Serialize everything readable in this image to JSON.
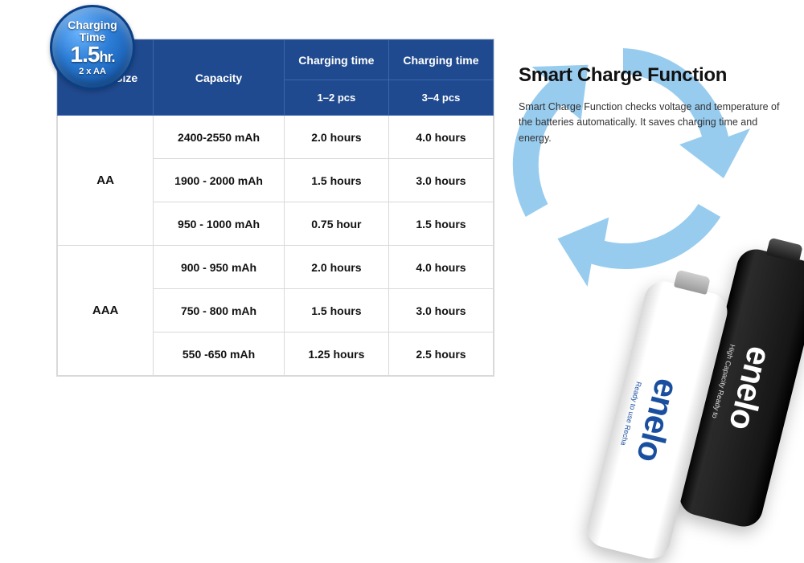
{
  "badge": {
    "line1": "Charging",
    "line2": "Time",
    "big_value": "1.5",
    "big_unit": "hr.",
    "sub": "2 x AA",
    "colors": {
      "gradient_light": "#6db6ff",
      "gradient_mid": "#2c7dd6",
      "gradient_dark": "#0b4a9e",
      "border": "#0a3f86",
      "text": "#ffffff"
    }
  },
  "table": {
    "header_bg": "#204a8f",
    "header_border": "#3a66ab",
    "cell_border": "#d9d9d9",
    "columns": {
      "size": "Battery Size",
      "capacity": "Capacity",
      "ct": "Charging time",
      "sub1": "1–2 pcs",
      "sub2": "3–4 pcs"
    },
    "groups": [
      {
        "size": "AA",
        "rows": [
          {
            "capacity": "2400-2550 mAh",
            "t12": "2.0 hours",
            "t34": "4.0 hours"
          },
          {
            "capacity": "1900 - 2000 mAh",
            "t12": "1.5 hours",
            "t34": "3.0 hours"
          },
          {
            "capacity": "950 - 1000 mAh",
            "t12": "0.75 hour",
            "t34": "1.5 hours"
          }
        ]
      },
      {
        "size": "AAA",
        "rows": [
          {
            "capacity": "900 - 950 mAh",
            "t12": "2.0 hours",
            "t34": "4.0 hours"
          },
          {
            "capacity": "750 - 800 mAh",
            "t12": "1.5 hours",
            "t34": "3.0 hours"
          },
          {
            "capacity": "550 -650 mAh",
            "t12": "1.25 hours",
            "t34": "2.5 hours"
          }
        ]
      }
    ]
  },
  "right": {
    "heading": "Smart Charge Function",
    "body": "Smart Charge Function checks voltage and temperature of the batteries automatically. It saves charging time and energy."
  },
  "cycle": {
    "arrow_color": "#93caef",
    "count": 3
  },
  "batteries": {
    "white": {
      "brand": "enelo",
      "tag": "Ready to use Recha",
      "body_color": "#ffffff",
      "brand_color": "#1a4fa0"
    },
    "black": {
      "brand": "enelo",
      "tag": "High Capacity Ready to",
      "body_color": "#161616",
      "brand_color": "#ffffff"
    }
  }
}
